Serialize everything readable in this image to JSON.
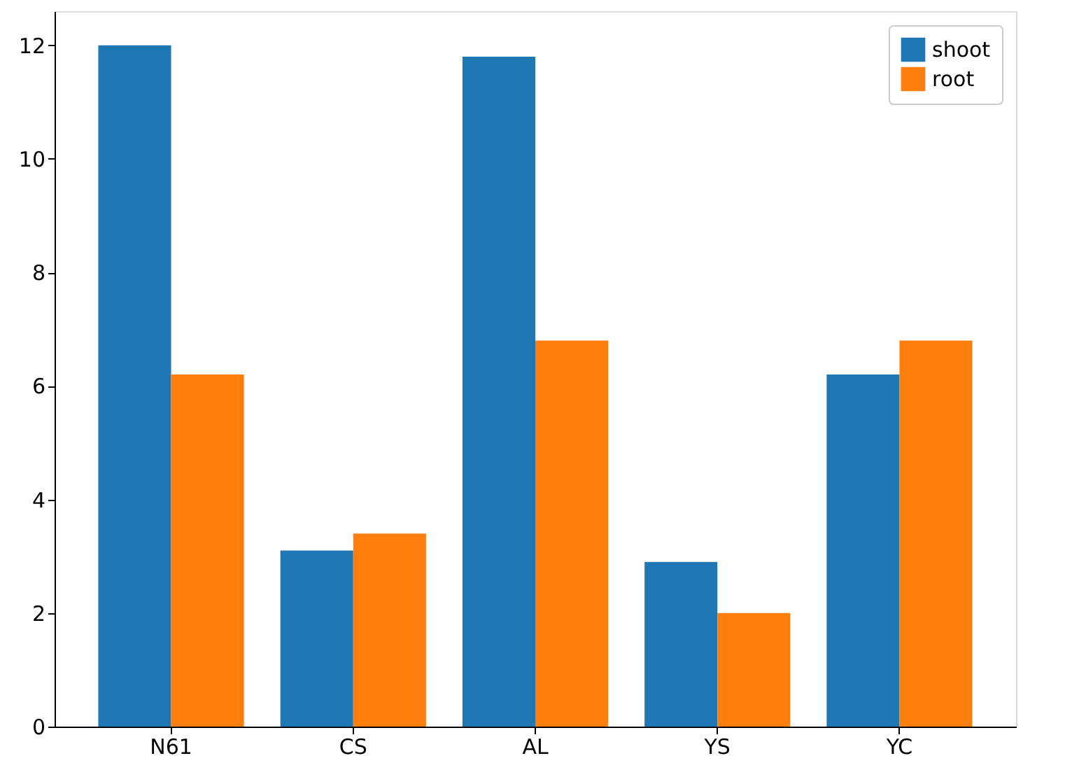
{
  "chart_data": {
    "type": "bar",
    "categories": [
      "N61",
      "CS",
      "AL",
      "YS",
      "YC"
    ],
    "series": [
      {
        "name": "shoot",
        "color": "#1f77b4",
        "values": [
          12.0,
          3.1,
          11.8,
          2.9,
          6.2
        ]
      },
      {
        "name": "root",
        "color": "#ff7f0e",
        "values": [
          6.2,
          3.4,
          6.8,
          2.0,
          6.8
        ]
      }
    ],
    "ylim": [
      0,
      12.6
    ],
    "yticks": [
      0,
      2,
      4,
      6,
      8,
      10,
      12
    ],
    "grid": false,
    "legend": "top right"
  }
}
